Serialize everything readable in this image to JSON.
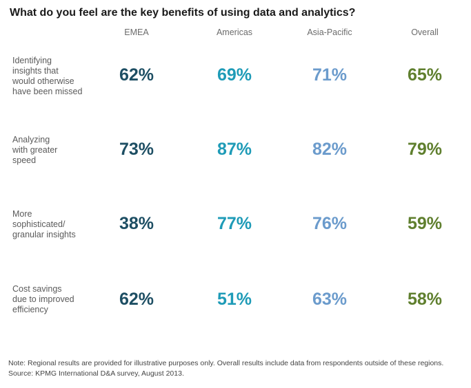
{
  "title": "What do you feel are the key benefits of using data and analytics?",
  "columns": [
    "EMEA",
    "Americas",
    "Asia-Pacific",
    "Overall"
  ],
  "colors": {
    "EMEA": "#1d4e63",
    "Americas": "#1e9bb7",
    "Asia-Pacific": "#6b9bcc",
    "Overall": "#5f7f2e"
  },
  "rows": [
    {
      "label": "Identifying\ninsights that\nwould otherwise\nhave been missed",
      "values": [
        "62%",
        "69%",
        "71%",
        "65%"
      ]
    },
    {
      "label": "Analyzing\nwith greater\nspeed",
      "values": [
        "73%",
        "87%",
        "82%",
        "79%"
      ]
    },
    {
      "label": "More\nsophisticated/\ngranular insights",
      "values": [
        "38%",
        "77%",
        "76%",
        "59%"
      ]
    },
    {
      "label": "Cost savings\ndue to improved\nefficiency",
      "values": [
        "62%",
        "51%",
        "63%",
        "58%"
      ]
    }
  ],
  "footnote": {
    "note": "Note: Regional results are provided for illustrative purposes only. Overall results include data from respondents outside of these regions.",
    "source": "Source: KPMG International D&A survey, August 2013."
  },
  "chart_data": {
    "type": "table",
    "title": "What do you feel are the key benefits of using data and analytics?",
    "columns": [
      "EMEA",
      "Americas",
      "Asia-Pacific",
      "Overall"
    ],
    "rows": [
      {
        "label": "Identifying insights that would otherwise have been missed",
        "values": [
          62,
          69,
          71,
          65
        ]
      },
      {
        "label": "Analyzing with greater speed",
        "values": [
          73,
          87,
          82,
          79
        ]
      },
      {
        "label": "More sophisticated/ granular insights",
        "values": [
          38,
          77,
          76,
          59
        ]
      },
      {
        "label": "Cost savings due to improved efficiency",
        "values": [
          62,
          51,
          63,
          58
        ]
      }
    ],
    "unit": "%"
  }
}
